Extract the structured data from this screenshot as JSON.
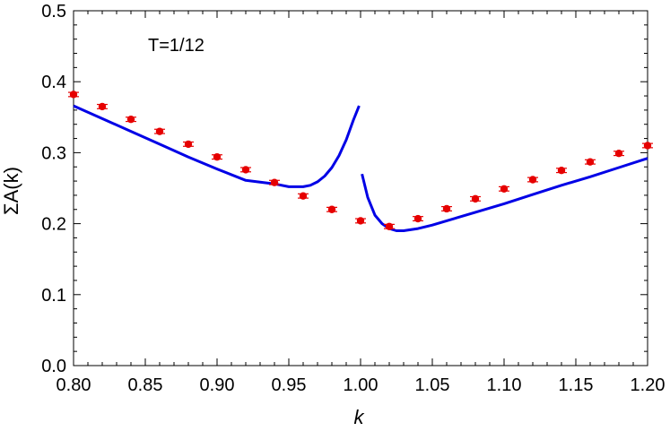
{
  "chart_data": {
    "type": "scatter",
    "title": "",
    "annotation": "T=1/12",
    "xlabel": "k",
    "ylabel": "ΣA(k)",
    "xlim": [
      0.8,
      1.2
    ],
    "ylim": [
      0.0,
      0.5
    ],
    "x_ticks": [
      "0.80",
      "0.85",
      "0.90",
      "0.95",
      "1.00",
      "1.05",
      "1.10",
      "1.15",
      "1.20"
    ],
    "y_ticks": [
      "0.0",
      "0.1",
      "0.2",
      "0.3",
      "0.4",
      "0.5"
    ],
    "grid": false,
    "colors": {
      "points": "#e60000",
      "curve": "#0000e6",
      "axes": "#000000"
    },
    "series": [
      {
        "type": "scatter_errorbar",
        "x": [
          0.8,
          0.82,
          0.84,
          0.86,
          0.88,
          0.9,
          0.92,
          0.94,
          0.96,
          0.98,
          1.0,
          1.02,
          1.04,
          1.06,
          1.08,
          1.1,
          1.12,
          1.14,
          1.16,
          1.18,
          1.2
        ],
        "y": [
          0.382,
          0.365,
          0.347,
          0.33,
          0.312,
          0.294,
          0.276,
          0.258,
          0.239,
          0.22,
          0.204,
          0.196,
          0.207,
          0.221,
          0.235,
          0.249,
          0.262,
          0.275,
          0.287,
          0.299,
          0.31
        ],
        "err": [
          0.003,
          0.003,
          0.003,
          0.003,
          0.003,
          0.003,
          0.003,
          0.003,
          0.003,
          0.003,
          0.003,
          0.003,
          0.003,
          0.003,
          0.003,
          0.003,
          0.003,
          0.003,
          0.003,
          0.003,
          0.003
        ]
      },
      {
        "type": "line",
        "segment": "left",
        "x": [
          0.8,
          0.82,
          0.84,
          0.86,
          0.88,
          0.9,
          0.92,
          0.94,
          0.95,
          0.96,
          0.965,
          0.97,
          0.975,
          0.98,
          0.985,
          0.99,
          0.995,
          0.999
        ],
        "y": [
          0.366,
          0.348,
          0.33,
          0.312,
          0.294,
          0.277,
          0.261,
          0.256,
          0.252,
          0.252,
          0.254,
          0.259,
          0.267,
          0.279,
          0.296,
          0.318,
          0.346,
          0.366
        ]
      },
      {
        "type": "line",
        "segment": "right",
        "x": [
          1.001,
          1.005,
          1.01,
          1.015,
          1.02,
          1.025,
          1.03,
          1.04,
          1.05,
          1.06,
          1.08,
          1.1,
          1.12,
          1.14,
          1.16,
          1.18,
          1.2
        ],
        "y": [
          0.27,
          0.237,
          0.212,
          0.2,
          0.193,
          0.19,
          0.19,
          0.193,
          0.198,
          0.204,
          0.216,
          0.228,
          0.241,
          0.254,
          0.266,
          0.279,
          0.292
        ]
      }
    ]
  }
}
